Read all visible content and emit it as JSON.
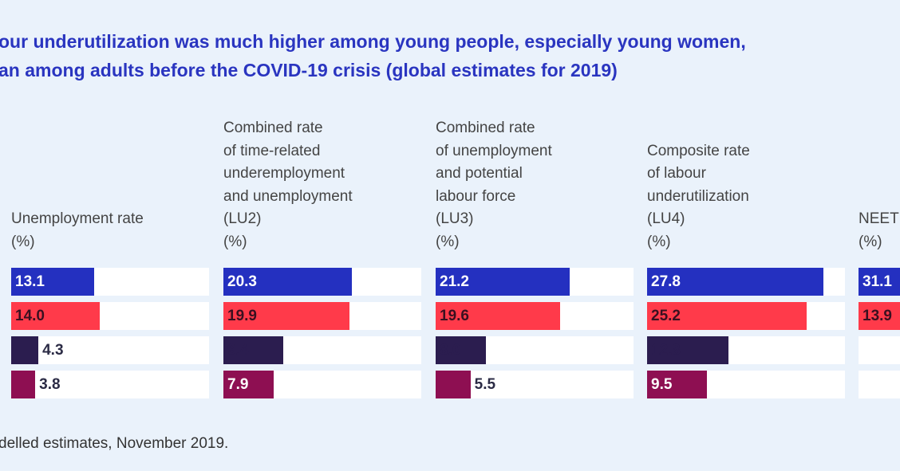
{
  "title_lines": [
    "our underutilization was much higher among young people, especially young women,",
    "an among adults before the COVID-19 crisis (global estimates for 2019)"
  ],
  "note": "delled estimates, November 2019.",
  "colors": {
    "series1": "#2430c0",
    "series2": "#ff3a4a",
    "series3": "#2b1d4f",
    "series4": "#8e0f52",
    "background": "#eaf2fb"
  },
  "chart_data": {
    "type": "bar",
    "orientation": "horizontal",
    "panels": [
      {
        "header": "Unemployment rate\n(%)",
        "values": [
          13.1,
          14.0,
          4.3,
          3.8
        ]
      },
      {
        "header": "Combined rate\nof time-related\nunderemployment\nand unemployment\n(LU2)\n(%)",
        "values": [
          20.3,
          19.9,
          9.4,
          7.9
        ]
      },
      {
        "header": "Combined rate\nof unemployment\nand potential\nlabour force\n(LU3)\n(%)",
        "values": [
          21.2,
          19.6,
          8.0,
          5.5
        ]
      },
      {
        "header": "Composite rate\nof labour\nunderutilization\n(LU4)\n(%)",
        "values": [
          27.8,
          25.2,
          12.8,
          9.5
        ]
      },
      {
        "header": "NEET\n(%)",
        "values": [
          31.1,
          13.9,
          null,
          null
        ]
      }
    ],
    "xlim": [
      0,
      31.25
    ],
    "grid": false
  }
}
